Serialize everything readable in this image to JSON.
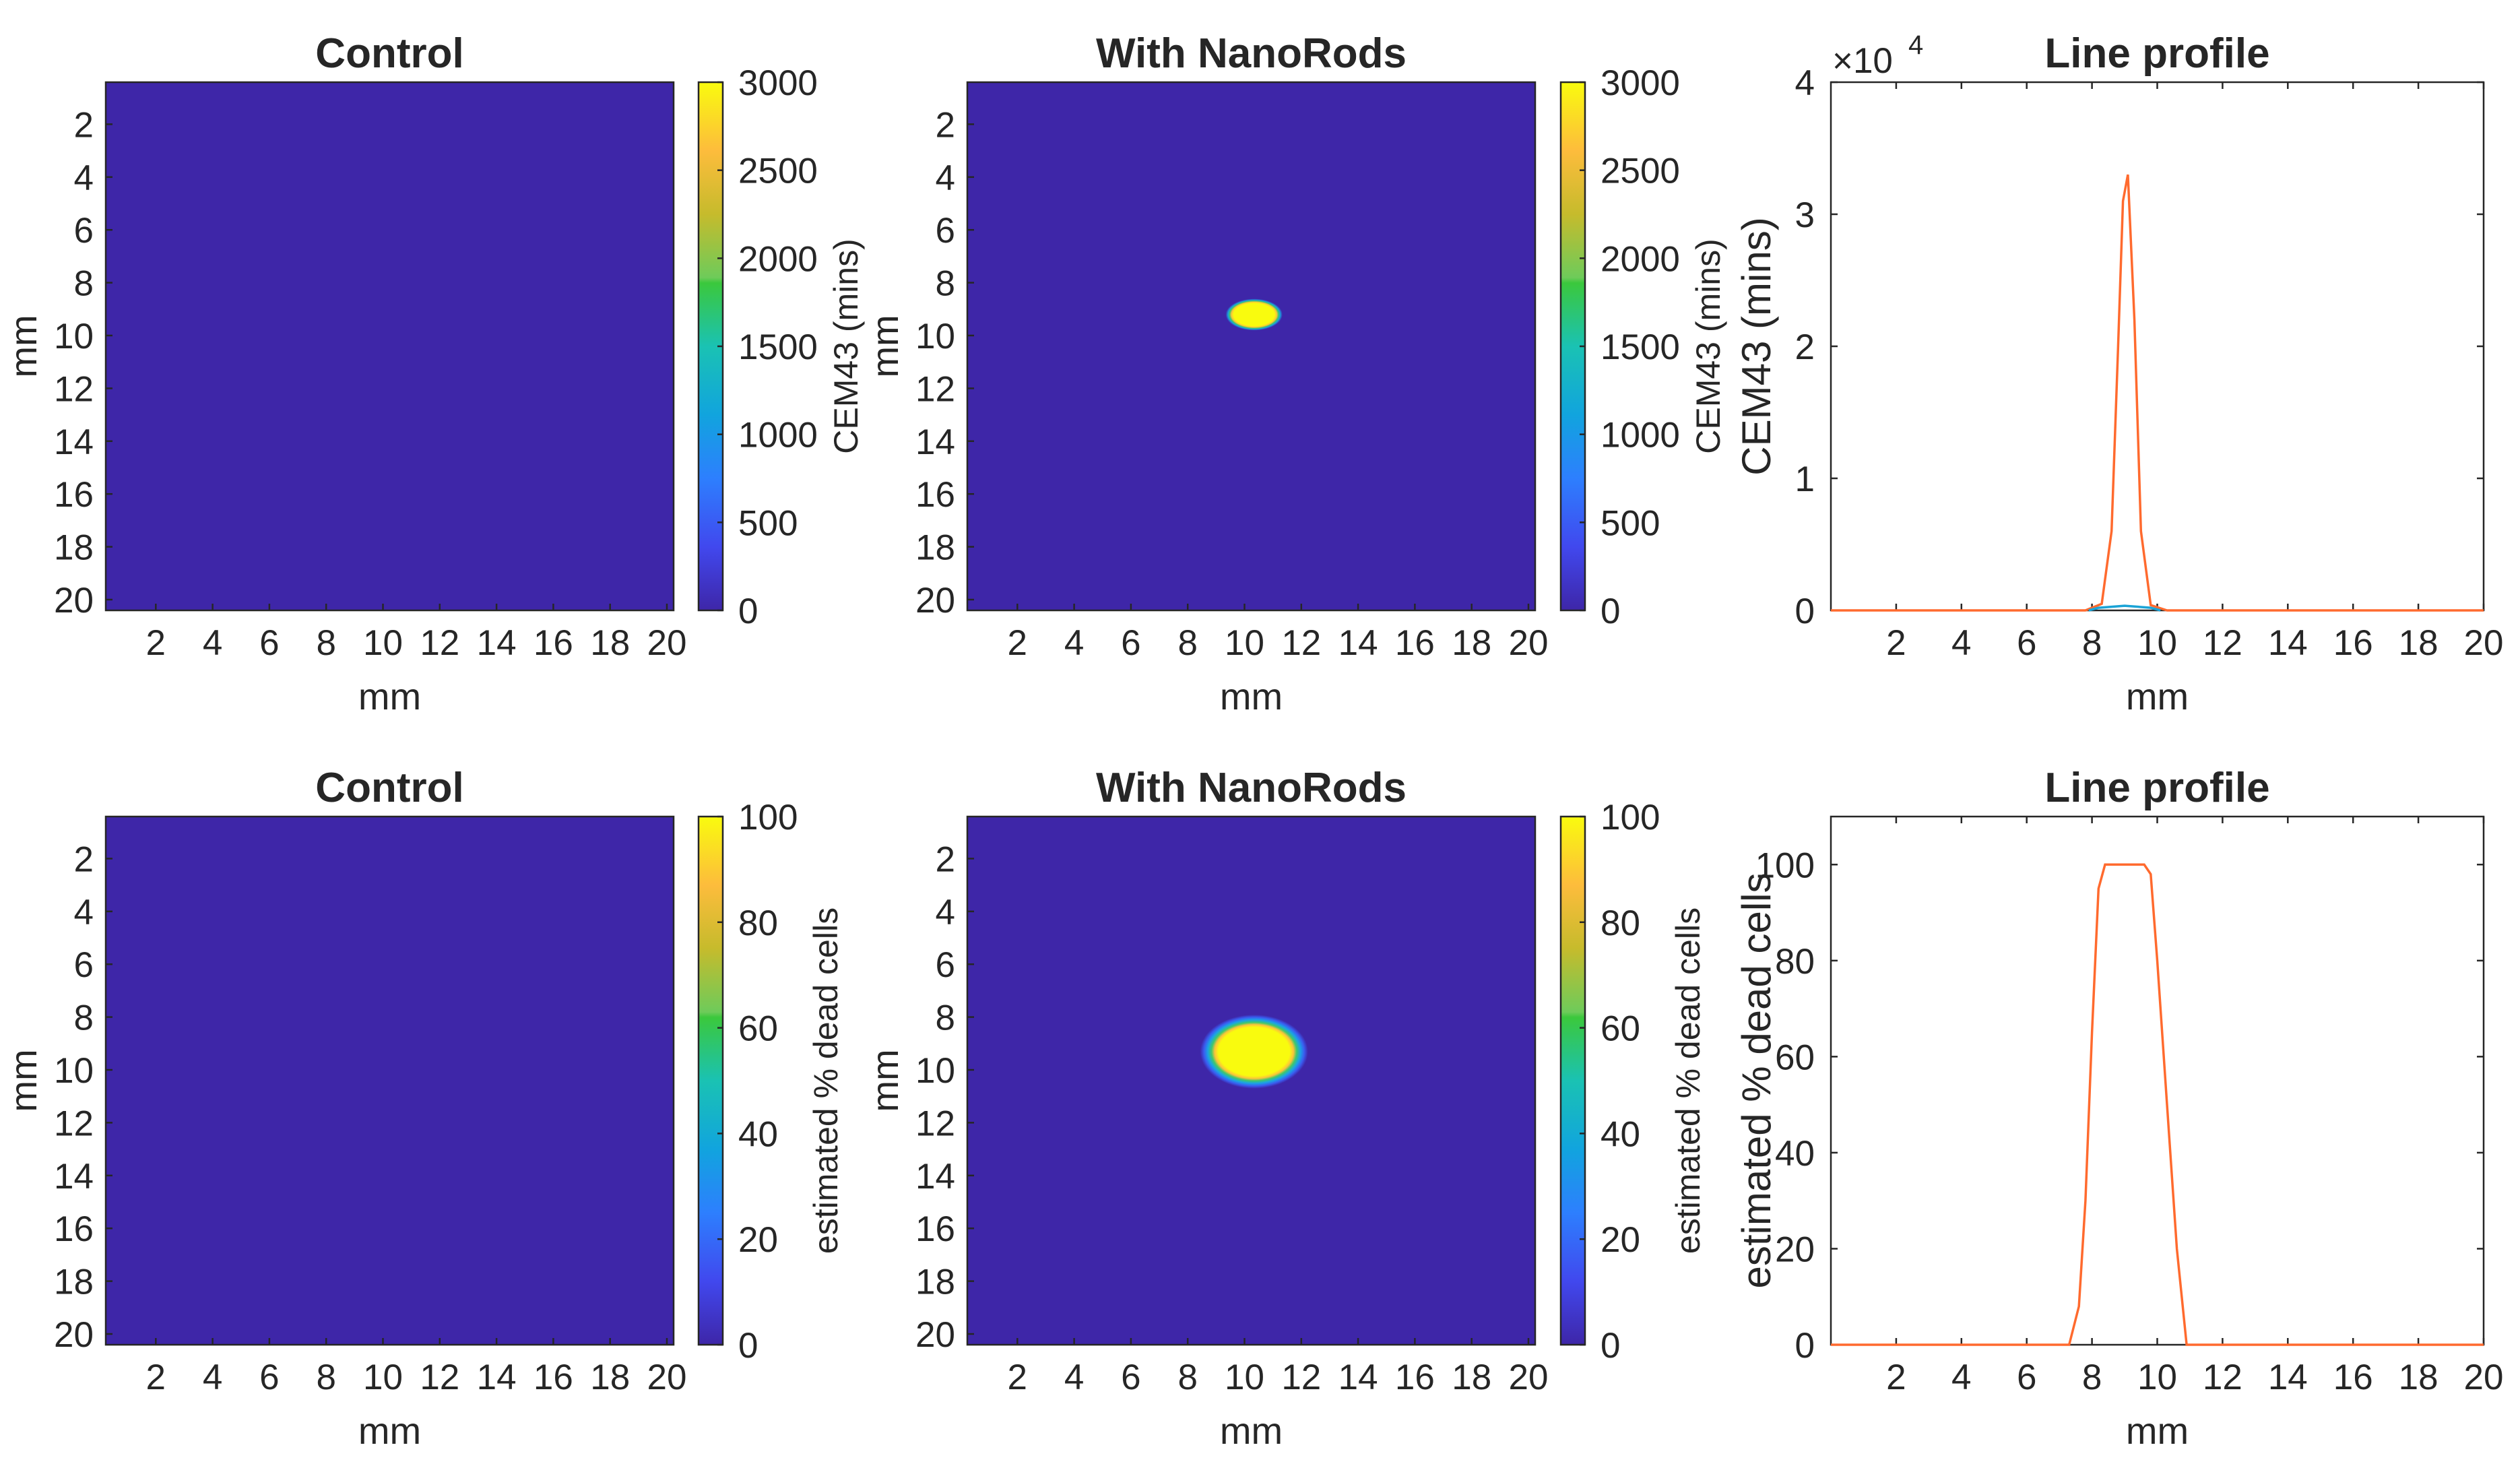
{
  "figure": {
    "background": "#ffffff"
  },
  "chart_data": [
    {
      "type": "heatmap",
      "title": "Control",
      "xlabel": "mm",
      "ylabel": "mm",
      "x_ticks": [
        "2",
        "4",
        "6",
        "8",
        "10",
        "12",
        "14",
        "16",
        "18",
        "20"
      ],
      "y_ticks": [
        "2",
        "4",
        "6",
        "8",
        "10",
        "12",
        "14",
        "16",
        "18",
        "20"
      ],
      "xlim": [
        0,
        20
      ],
      "ylim": [
        0,
        20
      ],
      "y_reversed": true,
      "field_value": 0,
      "hotspot": null,
      "colorbar": {
        "label": "CEM43 (mins)",
        "range": [
          0,
          3000
        ],
        "ticks": [
          "0",
          "500",
          "1000",
          "1500",
          "2000",
          "2500",
          "3000"
        ],
        "tick_values": [
          0,
          500,
          1000,
          1500,
          2000,
          2500,
          3000
        ],
        "colormap": "parula"
      }
    },
    {
      "type": "heatmap",
      "title": "With NanoRods",
      "xlabel": "mm",
      "ylabel": "mm",
      "x_ticks": [
        "2",
        "4",
        "6",
        "8",
        "10",
        "12",
        "14",
        "16",
        "18",
        "20"
      ],
      "y_ticks": [
        "2",
        "4",
        "6",
        "8",
        "10",
        "12",
        "14",
        "16",
        "18",
        "20"
      ],
      "xlim": [
        0,
        20
      ],
      "ylim": [
        0,
        20
      ],
      "y_reversed": true,
      "field_value": 0,
      "hotspot": {
        "center_x_mm": 10.1,
        "center_y_mm": 8.8,
        "radius_x_mm": 1.0,
        "radius_y_mm": 0.6,
        "peak_value": 3000
      },
      "colorbar": {
        "label": "CEM43 (mins)",
        "range": [
          0,
          3000
        ],
        "ticks": [
          "0",
          "500",
          "1000",
          "1500",
          "2000",
          "2500",
          "3000"
        ],
        "tick_values": [
          0,
          500,
          1000,
          1500,
          2000,
          2500,
          3000
        ],
        "colormap": "parula"
      }
    },
    {
      "type": "line",
      "title": "Line profile",
      "xlabel": "mm",
      "ylabel": "CEM43 (mins)",
      "exponent_label": "×10",
      "exponent_power": "4",
      "xlim": [
        0,
        20
      ],
      "ylim": [
        0,
        40000
      ],
      "x_ticks": [
        "2",
        "4",
        "6",
        "8",
        "10",
        "12",
        "14",
        "16",
        "18",
        "20"
      ],
      "x_tick_values": [
        2,
        4,
        6,
        8,
        10,
        12,
        14,
        16,
        18,
        20
      ],
      "y_ticks": [
        "0",
        "1",
        "2",
        "3",
        "4"
      ],
      "y_tick_values": [
        0,
        10000,
        20000,
        30000,
        40000
      ],
      "series": [
        {
          "color": "#ff6a2e",
          "x": [
            0,
            7.8,
            8.3,
            8.6,
            8.8,
            8.95,
            9.1,
            9.3,
            9.5,
            9.8,
            10.3,
            20
          ],
          "y": [
            0,
            0,
            500,
            6000,
            20000,
            31000,
            33000,
            22000,
            6000,
            400,
            0,
            0
          ]
        },
        {
          "color": "#1aa3d6",
          "x": [
            7.9,
            8.2,
            9.0,
            9.8,
            10.1
          ],
          "y": [
            0,
            200,
            350,
            200,
            0
          ]
        }
      ]
    },
    {
      "type": "heatmap",
      "title": "Control",
      "xlabel": "mm",
      "ylabel": "mm",
      "x_ticks": [
        "2",
        "4",
        "6",
        "8",
        "10",
        "12",
        "14",
        "16",
        "18",
        "20"
      ],
      "y_ticks": [
        "2",
        "4",
        "6",
        "8",
        "10",
        "12",
        "14",
        "16",
        "18",
        "20"
      ],
      "xlim": [
        0,
        20
      ],
      "ylim": [
        0,
        20
      ],
      "y_reversed": true,
      "field_value": 0,
      "hotspot": null,
      "colorbar": {
        "label": "estimated % dead cells",
        "range": [
          0,
          100
        ],
        "ticks": [
          "0",
          "20",
          "40",
          "60",
          "80",
          "100"
        ],
        "tick_values": [
          0,
          20,
          40,
          60,
          80,
          100
        ],
        "colormap": "parula"
      }
    },
    {
      "type": "heatmap",
      "title": "With NanoRods",
      "xlabel": "mm",
      "ylabel": "mm",
      "x_ticks": [
        "2",
        "4",
        "6",
        "8",
        "10",
        "12",
        "14",
        "16",
        "18",
        "20"
      ],
      "y_ticks": [
        "2",
        "4",
        "6",
        "8",
        "10",
        "12",
        "14",
        "16",
        "18",
        "20"
      ],
      "xlim": [
        0,
        20
      ],
      "ylim": [
        0,
        20
      ],
      "y_reversed": true,
      "field_value": 0,
      "hotspot": {
        "center_x_mm": 10.1,
        "center_y_mm": 8.9,
        "radius_x_mm": 1.9,
        "radius_y_mm": 1.4,
        "peak_value": 100
      },
      "colorbar": {
        "label": "estimated % dead cells",
        "range": [
          0,
          100
        ],
        "ticks": [
          "0",
          "20",
          "40",
          "60",
          "80",
          "100"
        ],
        "tick_values": [
          0,
          20,
          40,
          60,
          80,
          100
        ],
        "colormap": "parula"
      }
    },
    {
      "type": "line",
      "title": "Line profile",
      "xlabel": "mm",
      "ylabel": "estimated % dead cells",
      "xlim": [
        0,
        20
      ],
      "ylim": [
        0,
        110
      ],
      "x_ticks": [
        "2",
        "4",
        "6",
        "8",
        "10",
        "12",
        "14",
        "16",
        "18",
        "20"
      ],
      "x_tick_values": [
        2,
        4,
        6,
        8,
        10,
        12,
        14,
        16,
        18,
        20
      ],
      "y_ticks": [
        "0",
        "20",
        "40",
        "60",
        "80",
        "100"
      ],
      "y_tick_values": [
        0,
        20,
        40,
        60,
        80,
        100
      ],
      "series": [
        {
          "color": "#ff6a2e",
          "x": [
            0,
            7.3,
            7.6,
            7.8,
            8.0,
            8.2,
            8.4,
            9.6,
            9.8,
            10.0,
            10.3,
            10.6,
            10.9,
            20
          ],
          "y": [
            0,
            0,
            8,
            30,
            65,
            95,
            100,
            100,
            98,
            80,
            50,
            20,
            0,
            0
          ]
        }
      ]
    }
  ]
}
